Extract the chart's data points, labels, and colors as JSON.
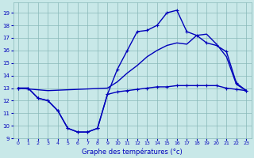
{
  "title": "Graphe des températures (°c)",
  "background_color": "#c8e8e8",
  "grid_color": "#88b8b8",
  "line_color": "#0000bb",
  "xlim": [
    -0.5,
    23.5
  ],
  "ylim": [
    9,
    19.8
  ],
  "xticks": [
    0,
    1,
    2,
    3,
    4,
    5,
    6,
    7,
    8,
    9,
    10,
    11,
    12,
    13,
    14,
    15,
    16,
    17,
    18,
    19,
    20,
    21,
    22,
    23
  ],
  "yticks": [
    9,
    10,
    11,
    12,
    13,
    14,
    15,
    16,
    17,
    18,
    19
  ],
  "series1_x": [
    0,
    1,
    2,
    3,
    4,
    5,
    6,
    7,
    8,
    9,
    10,
    11,
    12,
    13,
    14,
    15,
    16,
    17,
    18,
    19,
    20,
    21,
    22,
    23
  ],
  "series1_y": [
    13.0,
    13.0,
    12.2,
    12.0,
    11.2,
    9.8,
    9.5,
    9.5,
    9.8,
    12.5,
    12.7,
    12.8,
    12.9,
    13.0,
    13.1,
    13.1,
    13.2,
    13.2,
    13.2,
    13.2,
    13.2,
    13.0,
    12.9,
    12.8
  ],
  "series2_x": [
    0,
    1,
    2,
    3,
    4,
    5,
    6,
    7,
    8,
    9,
    10,
    11,
    12,
    13,
    14,
    15,
    16,
    17,
    18,
    19,
    20,
    21,
    22,
    23
  ],
  "series2_y": [
    13.0,
    13.0,
    12.2,
    12.0,
    11.2,
    9.8,
    9.5,
    9.5,
    9.8,
    12.5,
    14.5,
    16.0,
    17.5,
    17.6,
    18.0,
    19.0,
    19.2,
    17.5,
    17.2,
    16.6,
    16.4,
    15.9,
    13.4,
    12.8
  ],
  "series3_x": [
    0,
    3,
    9,
    10,
    11,
    12,
    13,
    14,
    15,
    16,
    17,
    18,
    19,
    20,
    21,
    22,
    23
  ],
  "series3_y": [
    13.0,
    12.8,
    13.0,
    13.5,
    14.2,
    14.8,
    15.5,
    16.0,
    16.4,
    16.6,
    16.5,
    17.2,
    17.3,
    16.5,
    15.5,
    13.3,
    12.8
  ],
  "linewidth": 1.0,
  "markersize": 3.5
}
